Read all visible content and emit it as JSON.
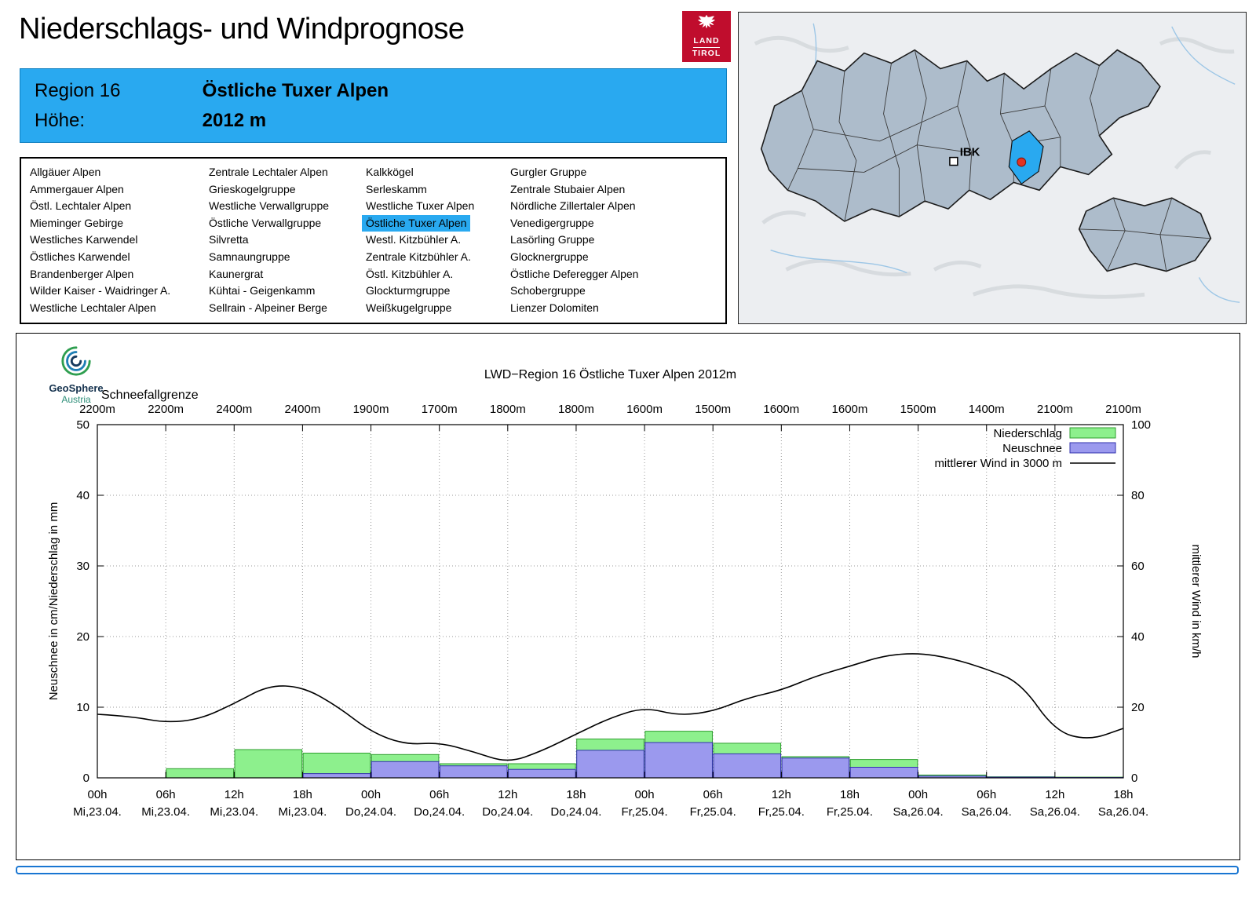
{
  "page_title": "Niederschlags- und Windprognose",
  "logo": {
    "line1": "LAND",
    "line2": "TIROL"
  },
  "region_header": {
    "region_label": "Region 16",
    "region_name": "Östliche Tuxer Alpen",
    "altitude_label": "Höhe:",
    "altitude_value": "2012 m"
  },
  "region_list": {
    "selected": "Östliche Tuxer Alpen",
    "columns": [
      [
        "Allgäuer Alpen",
        "Ammergauer Alpen",
        "Östl. Lechtaler Alpen",
        "Mieminger Gebirge",
        "Westliches Karwendel",
        "Östliches Karwendel",
        "Brandenberger Alpen",
        "Wilder Kaiser - Waidringer A.",
        "Westliche Lechtaler Alpen"
      ],
      [
        "Zentrale Lechtaler Alpen",
        "Grieskogelgruppe",
        "Westliche Verwallgruppe",
        "Östliche Verwallgruppe",
        "Silvretta",
        "Samnaungruppe",
        "Kaunergrat",
        "Kühtai - Geigenkamm",
        "Sellrain - Alpeiner Berge"
      ],
      [
        "Kalkkögel",
        "Serleskamm",
        "Westliche Tuxer Alpen",
        "Östliche Tuxer Alpen",
        "Westl. Kitzbühler A.",
        "Zentrale Kitzbühler A.",
        "Östl. Kitzbühler A.",
        "Glockturmgruppe",
        "Weißkugelgruppe"
      ],
      [
        "Gurgler Gruppe",
        "Zentrale Stubaier Alpen",
        "Nördliche Zillertaler Alpen",
        "Venedigergruppe",
        "Lasörling Gruppe",
        "Glocknergruppe",
        "Östliche Deferegger Alpen",
        "Schobergruppe",
        "Lienzer Dolomiten"
      ]
    ]
  },
  "map": {
    "marker_label": "IBK"
  },
  "geosphere": {
    "name": "GeoSphere",
    "sub": "Austria"
  },
  "colors": {
    "accent": "#29a9f0",
    "brand_red": "#c00d2d",
    "footer_blue": "#1976d2",
    "niederschlag_fill": "#8df08d",
    "niederschlag_border": "#2f9e2f",
    "neuschnee_fill": "#9b99ee",
    "neuschnee_border": "#3232ad",
    "wind_line": "#000000"
  },
  "chart_data": {
    "type": "bar",
    "title": "LWD−Region 16 Östliche Tuxer Alpen 2012m",
    "snowline_label": "Schneefallgrenze",
    "snowline_values": [
      "2200m",
      "2200m",
      "2400m",
      "2400m",
      "1900m",
      "1700m",
      "1800m",
      "1800m",
      "1600m",
      "1500m",
      "1600m",
      "1600m",
      "1500m",
      "1400m",
      "2100m",
      "2100m"
    ],
    "x_tick_times": [
      "00h",
      "06h",
      "12h",
      "18h",
      "00h",
      "06h",
      "12h",
      "18h",
      "00h",
      "06h",
      "12h",
      "18h",
      "00h",
      "06h",
      "12h",
      "18h"
    ],
    "x_tick_dates": [
      "Mi,23.04.",
      "Mi,23.04.",
      "Mi,23.04.",
      "Mi,23.04.",
      "Do,24.04.",
      "Do,24.04.",
      "Do,24.04.",
      "Do,24.04.",
      "Fr,25.04.",
      "Fr,25.04.",
      "Fr,25.04.",
      "Fr,25.04.",
      "Sa,26.04.",
      "Sa,26.04.",
      "Sa,26.04.",
      "Sa,26.04."
    ],
    "ylabel_left": "Neuschnee in cm/Niederschlag in mm",
    "ylabel_right": "mittlerer Wind in km/h",
    "ylim_left": [
      0,
      50
    ],
    "ylim_right": [
      0,
      100
    ],
    "yticks_left": [
      0,
      10,
      20,
      30,
      40,
      50
    ],
    "yticks_right": [
      0,
      20,
      40,
      60,
      80,
      100
    ],
    "interval_hours": 6,
    "legend": [
      {
        "label": "Niederschlag",
        "type": "box",
        "color": "#8df08d",
        "border": "#2f9e2f"
      },
      {
        "label": "Neuschnee",
        "type": "box",
        "color": "#9b99ee",
        "border": "#3232ad"
      },
      {
        "label": "mittlerer Wind in 3000 m",
        "type": "line",
        "color": "#000000"
      }
    ],
    "series": [
      {
        "name": "Niederschlag",
        "unit": "mm",
        "fill": "#8df08d",
        "stroke": "#2f9e2f",
        "values": [
          0,
          1.3,
          4.0,
          3.5,
          3.3,
          2.0,
          2.0,
          5.5,
          6.6,
          4.9,
          3.0,
          2.6,
          0.4,
          0.15,
          0.1
        ]
      },
      {
        "name": "Neuschnee",
        "unit": "cm",
        "fill": "#9b99ee",
        "stroke": "#3232ad",
        "values": [
          0,
          0,
          0,
          0.6,
          2.3,
          1.7,
          1.2,
          3.9,
          5.0,
          3.4,
          2.8,
          1.5,
          0.25,
          0.1,
          0.05
        ]
      }
    ],
    "wind": {
      "name": "mittlerer Wind in 3000 m",
      "unit": "km/h",
      "x_hours": [
        0,
        3,
        6,
        9,
        12,
        15,
        18,
        21,
        24,
        27,
        30,
        33,
        36,
        39,
        42,
        45,
        48,
        51,
        54,
        57,
        60,
        63,
        66,
        69,
        72,
        75,
        78,
        81,
        84,
        87,
        90
      ],
      "values_kmh": [
        18,
        17.4,
        15.6,
        16.6,
        21,
        26.2,
        25.8,
        20.4,
        13,
        9.4,
        10,
        7.4,
        4.2,
        7.6,
        12.4,
        17,
        20,
        17.6,
        18.8,
        22.6,
        24.8,
        28.8,
        31.6,
        34.6,
        35.4,
        33.8,
        30.8,
        27,
        13.2,
        10.6,
        14
      ]
    }
  }
}
